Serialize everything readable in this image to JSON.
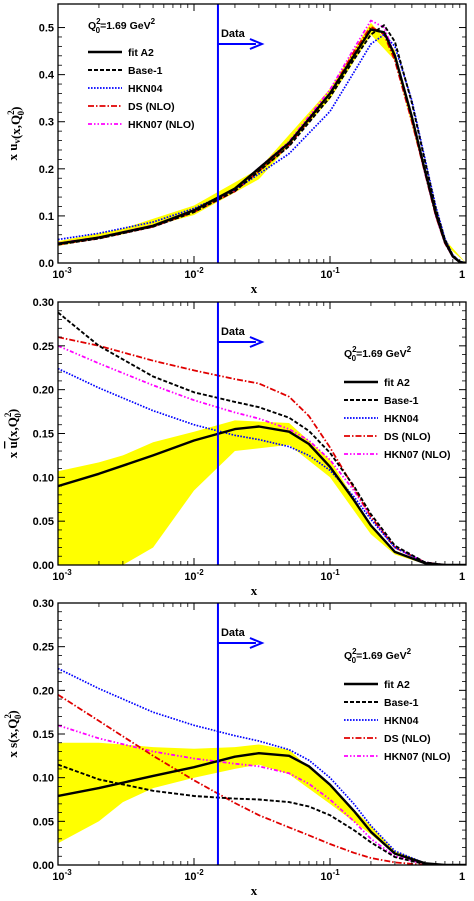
{
  "chart_data": [
    {
      "type": "line",
      "x_scale": "log",
      "xlim": [
        0.001,
        1
      ],
      "ylim": [
        0,
        0.55
      ],
      "xlabel": "x",
      "ylabel": "x u_v(x,Q_0^2)",
      "ylabel_parts": {
        "pre": "x u",
        "sub1": "v",
        "mid": "(x,Q",
        "sub2": "0",
        "sup2": "2",
        "post": ")"
      },
      "x_ticks": [
        "10-3",
        "10-2",
        "10-1",
        "1"
      ],
      "y_ticks": [
        "0.0",
        "0.1",
        "0.2",
        "0.3",
        "0.4",
        "0.5"
      ],
      "y_tick_values": [
        0,
        0.1,
        0.2,
        0.3,
        0.4,
        0.5
      ],
      "scale_label": "Q0^2=1.69 GeV^2",
      "scale_parts": {
        "q": "Q",
        "sub": "0",
        "sup": "2",
        "mid": "=1.69 GeV",
        "sup2": "2"
      },
      "legend_position": "top-left",
      "data_marker": {
        "x": 0.015,
        "label": "Data"
      },
      "band": {
        "color": "#ffff00",
        "x": [
          0.001,
          0.003,
          0.01,
          0.03,
          0.1,
          0.2,
          0.3,
          0.5,
          0.7,
          1.0
        ],
        "lower": [
          0.036,
          0.061,
          0.102,
          0.178,
          0.348,
          0.485,
          0.43,
          0.185,
          0.04,
          0.0
        ],
        "upper": [
          0.046,
          0.073,
          0.122,
          0.2,
          0.37,
          0.51,
          0.452,
          0.202,
          0.05,
          0.0
        ]
      },
      "series": [
        {
          "name": "fit A2",
          "color": "#000000",
          "dash": "solid",
          "width": 2.4,
          "x": [
            0.001,
            0.002,
            0.005,
            0.01,
            0.02,
            0.05,
            0.1,
            0.15,
            0.2,
            0.25,
            0.3,
            0.4,
            0.5,
            0.6,
            0.7,
            0.8,
            0.9,
            1.0
          ],
          "y": [
            0.041,
            0.054,
            0.079,
            0.112,
            0.158,
            0.255,
            0.36,
            0.44,
            0.496,
            0.49,
            0.44,
            0.31,
            0.195,
            0.105,
            0.045,
            0.014,
            0.002,
            0.0
          ]
        },
        {
          "name": "Base-1",
          "color": "#000000",
          "dash": "4,2",
          "width": 1.9,
          "x": [
            0.001,
            0.002,
            0.005,
            0.01,
            0.02,
            0.05,
            0.1,
            0.15,
            0.2,
            0.25,
            0.3,
            0.4,
            0.5,
            0.6,
            0.7,
            0.8,
            0.9,
            1.0
          ],
          "y": [
            0.039,
            0.052,
            0.077,
            0.108,
            0.153,
            0.248,
            0.352,
            0.432,
            0.485,
            0.505,
            0.47,
            0.34,
            0.215,
            0.115,
            0.05,
            0.016,
            0.003,
            0.0
          ]
        },
        {
          "name": "HKN04",
          "color": "#0000ff",
          "dash": "1.6,1.4",
          "width": 1.7,
          "x": [
            0.001,
            0.002,
            0.005,
            0.01,
            0.02,
            0.05,
            0.1,
            0.15,
            0.2,
            0.25,
            0.3,
            0.4,
            0.5,
            0.6,
            0.7,
            0.8,
            0.9,
            1.0
          ],
          "y": [
            0.05,
            0.063,
            0.087,
            0.116,
            0.155,
            0.232,
            0.322,
            0.405,
            0.465,
            0.485,
            0.46,
            0.345,
            0.22,
            0.12,
            0.052,
            0.017,
            0.003,
            0.0
          ]
        },
        {
          "name": "DS (NLO)",
          "color": "#e00000",
          "dash": "6,2,1.5,2",
          "width": 1.8,
          "x": [
            0.001,
            0.002,
            0.005,
            0.01,
            0.02,
            0.05,
            0.1,
            0.15,
            0.2,
            0.25,
            0.3,
            0.4,
            0.5,
            0.6,
            0.7,
            0.8,
            0.9,
            1.0
          ],
          "y": [
            0.039,
            0.052,
            0.077,
            0.108,
            0.152,
            0.25,
            0.36,
            0.448,
            0.502,
            0.485,
            0.43,
            0.3,
            0.19,
            0.1,
            0.042,
            0.013,
            0.002,
            0.0
          ]
        },
        {
          "name": "HKN07 (NLO)",
          "color": "#ff00ff",
          "dash": "4,2,1.5,2,1.5,2",
          "width": 1.8,
          "x": [
            0.001,
            0.002,
            0.005,
            0.01,
            0.02,
            0.05,
            0.1,
            0.15,
            0.2,
            0.25,
            0.3,
            0.4,
            0.5,
            0.6,
            0.7,
            0.8,
            0.9,
            1.0
          ],
          "y": [
            0.042,
            0.055,
            0.08,
            0.112,
            0.157,
            0.258,
            0.368,
            0.455,
            0.515,
            0.5,
            0.44,
            0.305,
            0.19,
            0.1,
            0.043,
            0.013,
            0.002,
            0.0
          ]
        }
      ]
    },
    {
      "type": "line",
      "x_scale": "log",
      "xlim": [
        0.001,
        1
      ],
      "ylim": [
        0,
        0.3
      ],
      "xlabel": "x",
      "ylabel": "x ubar(x,Q_0^2)",
      "ylabel_parts": {
        "pre": "x ",
        "over": "u",
        "mid": "(x,Q",
        "sub2": "0",
        "sup2": "2",
        "post": ")"
      },
      "x_ticks": [
        "10-3",
        "10-2",
        "10-1",
        "1"
      ],
      "y_ticks": [
        "0.00",
        "0.05",
        "0.10",
        "0.15",
        "0.20",
        "0.25",
        "0.30"
      ],
      "y_tick_values": [
        0,
        0.05,
        0.1,
        0.15,
        0.2,
        0.25,
        0.3
      ],
      "scale_label": "Q0^2=1.69 GeV^2",
      "scale_parts": {
        "q": "Q",
        "sub": "0",
        "sup": "2",
        "mid": "=1.69 GeV",
        "sup2": "2"
      },
      "legend_position": "top-right",
      "data_marker": {
        "x": 0.015,
        "label": "Data"
      },
      "band": {
        "color": "#ffff00",
        "x": [
          0.001,
          0.002,
          0.003,
          0.005,
          0.01,
          0.02,
          0.05,
          0.1,
          0.2,
          0.3,
          0.5,
          0.7,
          1.0
        ],
        "lower": [
          0.0,
          0.0,
          0.0,
          0.02,
          0.085,
          0.13,
          0.137,
          0.1,
          0.035,
          0.012,
          0.001,
          0.0,
          0.0
        ],
        "upper": [
          0.107,
          0.117,
          0.125,
          0.14,
          0.152,
          0.165,
          0.162,
          0.12,
          0.045,
          0.016,
          0.003,
          0.0,
          0.0
        ]
      },
      "series": [
        {
          "name": "fit A2",
          "color": "#000000",
          "dash": "solid",
          "width": 2.4,
          "x": [
            0.001,
            0.002,
            0.005,
            0.01,
            0.02,
            0.03,
            0.05,
            0.07,
            0.1,
            0.15,
            0.2,
            0.3,
            0.5,
            0.7,
            1.0
          ],
          "y": [
            0.09,
            0.104,
            0.125,
            0.142,
            0.155,
            0.158,
            0.152,
            0.138,
            0.112,
            0.074,
            0.045,
            0.015,
            0.002,
            0.0,
            0.0
          ]
        },
        {
          "name": "Base-1",
          "color": "#000000",
          "dash": "4,2",
          "width": 1.9,
          "x": [
            0.001,
            0.002,
            0.005,
            0.01,
            0.02,
            0.03,
            0.05,
            0.07,
            0.1,
            0.15,
            0.2,
            0.3,
            0.5,
            0.7,
            1.0
          ],
          "y": [
            0.288,
            0.25,
            0.215,
            0.197,
            0.186,
            0.18,
            0.168,
            0.153,
            0.128,
            0.09,
            0.058,
            0.022,
            0.003,
            0.0,
            0.0
          ]
        },
        {
          "name": "HKN04",
          "color": "#0000ff",
          "dash": "1.6,1.4",
          "width": 1.7,
          "x": [
            0.001,
            0.002,
            0.005,
            0.01,
            0.02,
            0.03,
            0.05,
            0.07,
            0.1,
            0.15,
            0.2,
            0.3,
            0.5,
            0.7,
            1.0
          ],
          "y": [
            0.224,
            0.202,
            0.176,
            0.16,
            0.148,
            0.143,
            0.135,
            0.125,
            0.108,
            0.078,
            0.052,
            0.02,
            0.003,
            0.0,
            0.0
          ]
        },
        {
          "name": "DS (NLO)",
          "color": "#e00000",
          "dash": "6,2,1.5,2",
          "width": 1.8,
          "x": [
            0.001,
            0.002,
            0.005,
            0.01,
            0.02,
            0.03,
            0.05,
            0.07,
            0.1,
            0.15,
            0.2,
            0.3,
            0.5,
            0.7,
            1.0
          ],
          "y": [
            0.26,
            0.25,
            0.233,
            0.222,
            0.212,
            0.207,
            0.192,
            0.17,
            0.134,
            0.088,
            0.055,
            0.02,
            0.003,
            0.0,
            0.0
          ]
        },
        {
          "name": "HKN07 (NLO)",
          "color": "#ff00ff",
          "dash": "4,2,1.5,2,1.5,2",
          "width": 1.8,
          "x": [
            0.001,
            0.002,
            0.005,
            0.01,
            0.02,
            0.03,
            0.05,
            0.07,
            0.1,
            0.15,
            0.2,
            0.3,
            0.5,
            0.7,
            1.0
          ],
          "y": [
            0.25,
            0.23,
            0.205,
            0.188,
            0.174,
            0.167,
            0.155,
            0.142,
            0.12,
            0.085,
            0.055,
            0.02,
            0.003,
            0.0,
            0.0
          ]
        }
      ]
    },
    {
      "type": "line",
      "x_scale": "log",
      "xlim": [
        0.001,
        1
      ],
      "ylim": [
        0,
        0.3
      ],
      "xlabel": "x",
      "ylabel": "x s(x,Q_0^2)",
      "ylabel_parts": {
        "pre": "x s",
        "mid": "(x,Q",
        "sub2": "0",
        "sup2": "2",
        "post": ")"
      },
      "x_ticks": [
        "10-3",
        "10-2",
        "10-1",
        "1"
      ],
      "y_ticks": [
        "0.00",
        "0.05",
        "0.10",
        "0.15",
        "0.20",
        "0.25",
        "0.30"
      ],
      "y_tick_values": [
        0,
        0.05,
        0.1,
        0.15,
        0.2,
        0.25,
        0.3
      ],
      "scale_label": "Q0^2=1.69 GeV^2",
      "scale_parts": {
        "q": "Q",
        "sub": "0",
        "sup": "2",
        "mid": "=1.69 GeV",
        "sup2": "2"
      },
      "legend_position": "top-right",
      "data_marker": {
        "x": 0.015,
        "label": "Data"
      },
      "band": {
        "color": "#ffff00",
        "x": [
          0.001,
          0.002,
          0.003,
          0.005,
          0.01,
          0.02,
          0.03,
          0.05,
          0.1,
          0.2,
          0.3,
          0.5,
          0.7,
          1.0
        ],
        "lower": [
          0.025,
          0.05,
          0.072,
          0.088,
          0.1,
          0.11,
          0.115,
          0.104,
          0.07,
          0.035,
          0.012,
          0.002,
          0.0,
          0.0
        ],
        "upper": [
          0.14,
          0.14,
          0.138,
          0.135,
          0.133,
          0.135,
          0.138,
          0.132,
          0.09,
          0.045,
          0.016,
          0.003,
          0.0,
          0.0
        ]
      },
      "series": [
        {
          "name": "fit A2",
          "color": "#000000",
          "dash": "solid",
          "width": 2.4,
          "x": [
            0.001,
            0.002,
            0.005,
            0.01,
            0.02,
            0.03,
            0.05,
            0.07,
            0.1,
            0.15,
            0.2,
            0.3,
            0.5,
            0.7,
            1.0
          ],
          "y": [
            0.079,
            0.088,
            0.102,
            0.112,
            0.124,
            0.128,
            0.125,
            0.113,
            0.092,
            0.062,
            0.038,
            0.013,
            0.002,
            0.0,
            0.0
          ]
        },
        {
          "name": "Base-1",
          "color": "#000000",
          "dash": "4,2",
          "width": 1.9,
          "x": [
            0.001,
            0.002,
            0.005,
            0.01,
            0.02,
            0.03,
            0.05,
            0.07,
            0.1,
            0.15,
            0.2,
            0.3,
            0.5,
            0.7,
            1.0
          ],
          "y": [
            0.115,
            0.098,
            0.085,
            0.079,
            0.076,
            0.075,
            0.072,
            0.067,
            0.057,
            0.04,
            0.026,
            0.009,
            0.001,
            0.0,
            0.0
          ]
        },
        {
          "name": "HKN04",
          "color": "#0000ff",
          "dash": "1.6,1.4",
          "width": 1.7,
          "x": [
            0.001,
            0.002,
            0.005,
            0.01,
            0.02,
            0.03,
            0.05,
            0.07,
            0.1,
            0.15,
            0.2,
            0.3,
            0.5,
            0.7,
            1.0
          ],
          "y": [
            0.225,
            0.202,
            0.175,
            0.16,
            0.148,
            0.142,
            0.132,
            0.12,
            0.1,
            0.07,
            0.045,
            0.016,
            0.002,
            0.0,
            0.0
          ]
        },
        {
          "name": "DS (NLO)",
          "color": "#e00000",
          "dash": "6,2,1.5,2",
          "width": 1.8,
          "x": [
            0.001,
            0.002,
            0.005,
            0.01,
            0.02,
            0.03,
            0.05,
            0.07,
            0.1,
            0.15,
            0.2,
            0.3,
            0.5,
            0.7,
            1.0
          ],
          "y": [
            0.195,
            0.165,
            0.125,
            0.097,
            0.071,
            0.057,
            0.043,
            0.034,
            0.024,
            0.014,
            0.008,
            0.003,
            0.0,
            0.0,
            0.0
          ]
        },
        {
          "name": "HKN07 (NLO)",
          "color": "#ff00ff",
          "dash": "4,2,1.5,2,1.5,2",
          "width": 1.8,
          "x": [
            0.001,
            0.002,
            0.005,
            0.01,
            0.02,
            0.03,
            0.05,
            0.07,
            0.1,
            0.15,
            0.2,
            0.3,
            0.5,
            0.7,
            1.0
          ],
          "y": [
            0.16,
            0.145,
            0.13,
            0.122,
            0.116,
            0.113,
            0.105,
            0.093,
            0.075,
            0.05,
            0.03,
            0.01,
            0.001,
            0.0,
            0.0
          ]
        }
      ]
    }
  ]
}
